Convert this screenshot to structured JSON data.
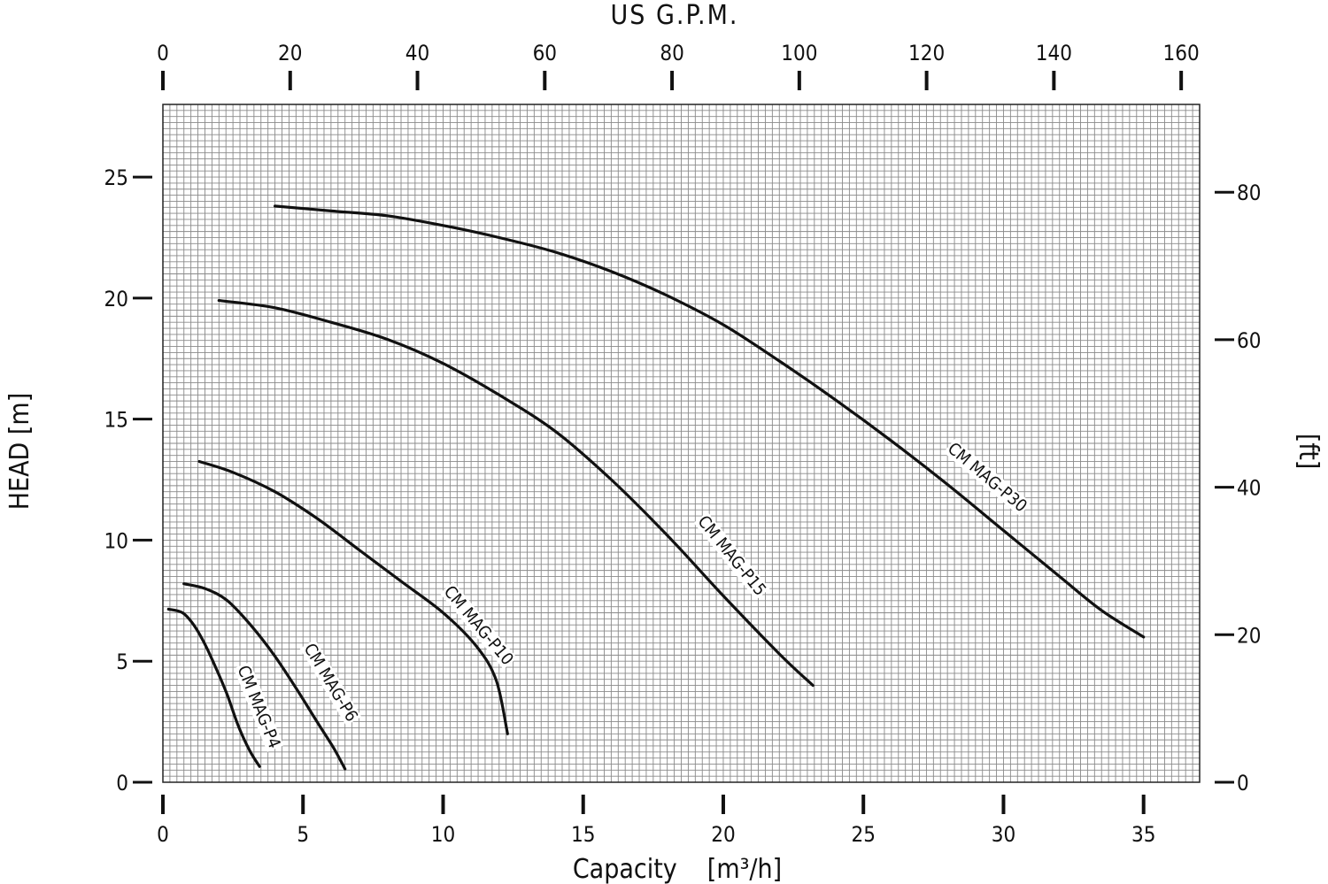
{
  "chart_data": {
    "type": "line",
    "x_axis": {
      "label": "Capacity",
      "unit": "[m³/h]",
      "range": [
        0,
        37
      ],
      "ticks": [
        "0",
        "5",
        "10",
        "15",
        "20",
        "25",
        "30",
        "35"
      ]
    },
    "x_axis_top": {
      "label": "US G.P.M.",
      "range": [
        0,
        162.9
      ],
      "ticks": [
        "0",
        "20",
        "40",
        "60",
        "80",
        "100",
        "120",
        "140",
        "160"
      ]
    },
    "y_axis": {
      "label": "HEAD [m]",
      "range": [
        0,
        28
      ],
      "ticks": [
        "0",
        "5",
        "10",
        "15",
        "20",
        "25"
      ]
    },
    "y_axis_right": {
      "label": "[ft]",
      "range": [
        0,
        91.9
      ],
      "ticks": [
        "0",
        "20",
        "40",
        "60",
        "80"
      ]
    },
    "grid": true,
    "series": [
      {
        "name": "CM MAG-P4",
        "points": [
          [
            0.2,
            7.15
          ],
          [
            0.7,
            7.0
          ],
          [
            1.1,
            6.5
          ],
          [
            1.5,
            5.7
          ],
          [
            1.9,
            4.7
          ],
          [
            2.3,
            3.6
          ],
          [
            2.7,
            2.3
          ],
          [
            3.1,
            1.3
          ],
          [
            3.45,
            0.65
          ]
        ]
      },
      {
        "name": "CM MAG-P6",
        "points": [
          [
            0.75,
            8.2
          ],
          [
            1.5,
            8.0
          ],
          [
            2.3,
            7.5
          ],
          [
            3.2,
            6.4
          ],
          [
            4.0,
            5.2
          ],
          [
            4.8,
            3.8
          ],
          [
            5.5,
            2.5
          ],
          [
            6.1,
            1.4
          ],
          [
            6.5,
            0.55
          ]
        ]
      },
      {
        "name": "CM MAG-P10",
        "points": [
          [
            1.3,
            13.25
          ],
          [
            2.5,
            12.8
          ],
          [
            4.0,
            12.0
          ],
          [
            5.5,
            10.9
          ],
          [
            7.0,
            9.6
          ],
          [
            8.5,
            8.3
          ],
          [
            10.0,
            7.0
          ],
          [
            11.2,
            5.6
          ],
          [
            11.9,
            4.2
          ],
          [
            12.3,
            2.0
          ]
        ]
      },
      {
        "name": "CM MAG-P15",
        "points": [
          [
            2.0,
            19.9
          ],
          [
            4.0,
            19.6
          ],
          [
            6.0,
            19.0
          ],
          [
            8.0,
            18.3
          ],
          [
            10.0,
            17.3
          ],
          [
            12.0,
            16.0
          ],
          [
            14.0,
            14.5
          ],
          [
            16.0,
            12.5
          ],
          [
            18.0,
            10.2
          ],
          [
            20.0,
            7.7
          ],
          [
            22.0,
            5.3
          ],
          [
            23.2,
            4.0
          ]
        ]
      },
      {
        "name": "CM MAG-P30",
        "points": [
          [
            4.0,
            23.8
          ],
          [
            6.0,
            23.6
          ],
          [
            8.0,
            23.4
          ],
          [
            10.0,
            23.0
          ],
          [
            12.0,
            22.5
          ],
          [
            14.0,
            21.9
          ],
          [
            16.0,
            21.1
          ],
          [
            18.0,
            20.1
          ],
          [
            20.0,
            18.9
          ],
          [
            22.0,
            17.4
          ],
          [
            24.0,
            15.8
          ],
          [
            26.0,
            14.1
          ],
          [
            28.0,
            12.3
          ],
          [
            30.0,
            10.4
          ],
          [
            32.0,
            8.5
          ],
          [
            33.5,
            7.1
          ],
          [
            35.0,
            6.0
          ]
        ]
      }
    ],
    "curve_labels": [
      {
        "series": "CM MAG-P4",
        "text": "CM MAG-P4"
      },
      {
        "series": "CM MAG-P6",
        "text": "CM MAG-P6"
      },
      {
        "series": "CM MAG-P10",
        "text": "CM MAG-P10"
      },
      {
        "series": "CM MAG-P15",
        "text": "CM MAG-P15"
      },
      {
        "series": "CM MAG-P30",
        "text": "CM MAG-P30"
      }
    ],
    "colors": {
      "curve": "#111111",
      "grid": "#8a8a8a",
      "frame": "#222222"
    }
  }
}
